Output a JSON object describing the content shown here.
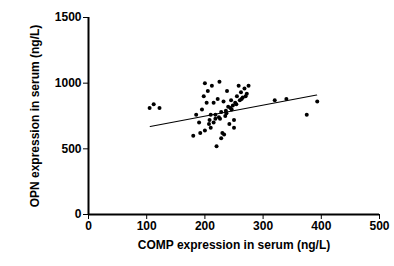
{
  "chart_data": {
    "type": "scatter",
    "x_label": "COMP expression in serum (ng/L)",
    "y_label": "OPN expression in serum (ng/L)",
    "xlim": [
      0,
      500
    ],
    "xticks": [
      0,
      100,
      200,
      300,
      400,
      500
    ],
    "ylim": [
      0,
      1500
    ],
    "yticks": [
      0,
      500,
      1000,
      1500
    ],
    "color": "#000000",
    "marker": "circle",
    "grid": false,
    "points": {
      "x": [
        105,
        112,
        122,
        180,
        185,
        190,
        192,
        195,
        198,
        200,
        203,
        205,
        208,
        210,
        212,
        215,
        218,
        220,
        222,
        225,
        226,
        228,
        230,
        232,
        235,
        236,
        238,
        240,
        242,
        244,
        245,
        248,
        250,
        252,
        255,
        258,
        260,
        262,
        265,
        268,
        270,
        272,
        275,
        215,
        228,
        233,
        250,
        210,
        200,
        207,
        218,
        224,
        237,
        246,
        254,
        263,
        320,
        340,
        375,
        393
      ],
      "y": [
        810,
        840,
        810,
        600,
        760,
        700,
        620,
        800,
        900,
        1000,
        850,
        940,
        720,
        660,
        980,
        700,
        760,
        520,
        880,
        1010,
        730,
        780,
        620,
        860,
        750,
        790,
        940,
        820,
        690,
        810,
        870,
        830,
        720,
        850,
        900,
        980,
        870,
        930,
        890,
        960,
        900,
        920,
        980,
        850,
        580,
        610,
        660,
        760,
        640,
        690,
        730,
        740,
        770,
        800,
        840,
        880,
        870,
        880,
        760,
        860
      ]
    },
    "fit_line": {
      "x": [
        106,
        392
      ],
      "y": [
        670,
        910
      ],
      "line_style": "solid"
    }
  }
}
